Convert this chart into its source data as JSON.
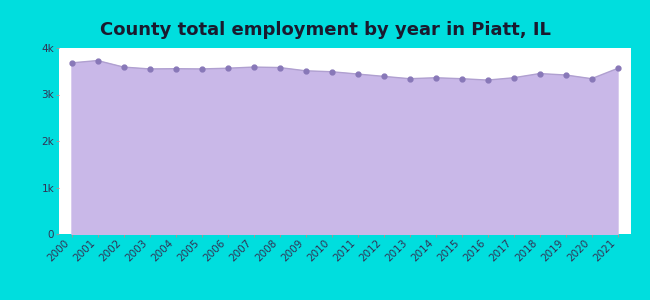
{
  "title": "County total employment by year in Piatt, IL",
  "years": [
    2000,
    2001,
    2002,
    2003,
    2004,
    2005,
    2006,
    2007,
    2008,
    2009,
    2010,
    2011,
    2012,
    2013,
    2014,
    2015,
    2016,
    2017,
    2018,
    2019,
    2020,
    2021
  ],
  "values": [
    3680,
    3730,
    3590,
    3550,
    3555,
    3550,
    3565,
    3590,
    3580,
    3510,
    3490,
    3440,
    3390,
    3340,
    3360,
    3340,
    3310,
    3360,
    3450,
    3420,
    3340,
    3560
  ],
  "ylim": [
    0,
    4000
  ],
  "yticks": [
    0,
    1000,
    2000,
    3000,
    4000
  ],
  "ytick_labels": [
    "0",
    "1k",
    "2k",
    "3k",
    "4k"
  ],
  "line_color": "#b0a0d0",
  "fill_color": "#c9b8e8",
  "marker_color": "#8878b8",
  "background_outer": "#00dede",
  "background_plot": "#ffffff",
  "title_color": "#1a1a2e",
  "title_fontsize": 13,
  "tick_label_color": "#333355",
  "tick_fontsize": 7.5,
  "marker_size": 3.5,
  "line_width": 1.0
}
